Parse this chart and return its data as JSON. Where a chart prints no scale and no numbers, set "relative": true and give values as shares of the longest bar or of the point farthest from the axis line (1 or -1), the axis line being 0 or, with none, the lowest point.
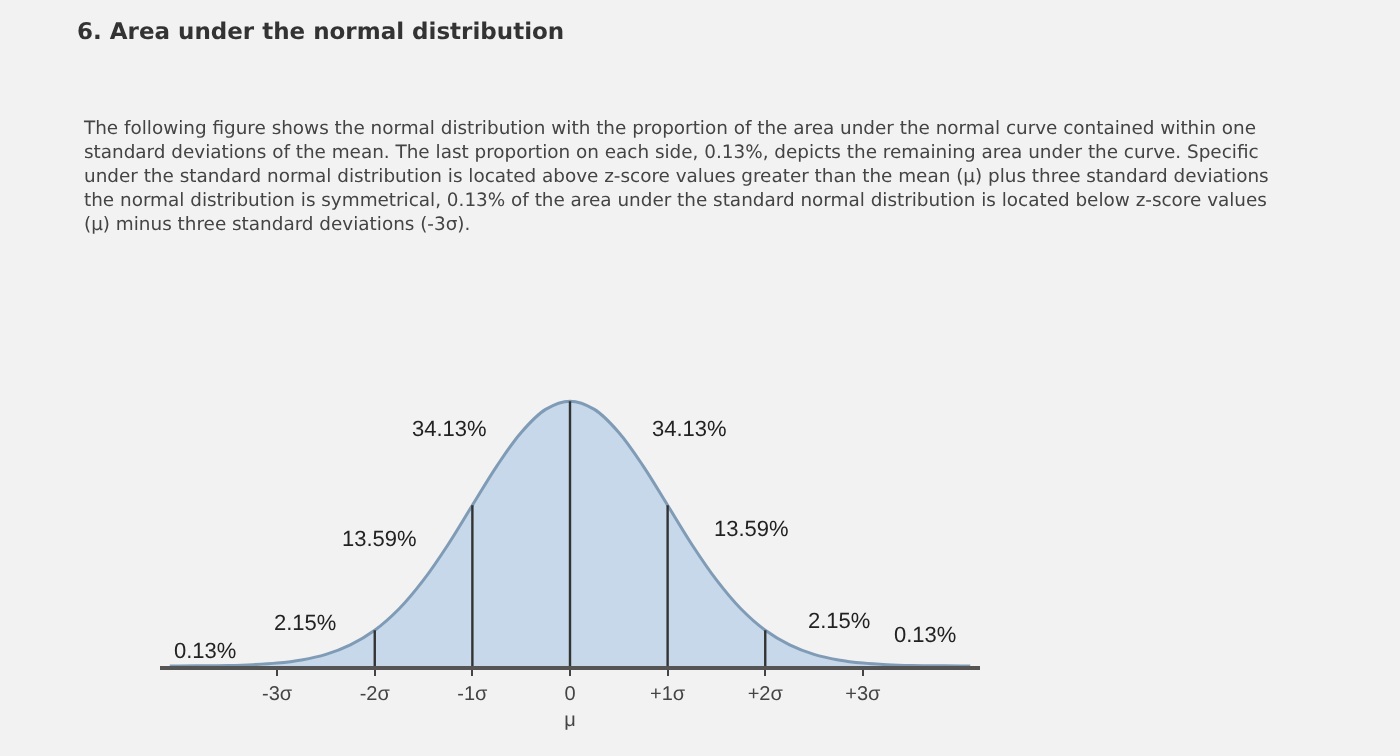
{
  "chart_data": {
    "type": "area",
    "relative": true,
    "title": "6. Area under the normal distribution",
    "subtitle": "The following figure shows the normal distribution with the proportion of the area under the normal curve contained within one\nstandard deviations of the mean. The last proportion on each side, 0.13%, depicts the remaining area under the curve. Specific\nunder the standard normal distribution is located above z-score values greater than the mean (μ) plus three standard deviations\nthe normal distribution is symmetrical, 0.13% of the area under the standard normal distribution is located below z-score values\n(μ) minus three standard deviations (-3σ).",
    "x": [
      -4.1,
      -4,
      -3.75,
      -3.5,
      -3.25,
      -3,
      -2.75,
      -2.5,
      -2.25,
      -2,
      -1.75,
      -1.5,
      -1.25,
      -1,
      -0.75,
      -0.5,
      -0.25,
      0,
      0.25,
      0.5,
      0.75,
      1,
      1.25,
      1.5,
      1.75,
      2,
      2.25,
      2.5,
      2.75,
      3,
      3.25,
      3.5,
      3.75,
      4,
      4.1
    ],
    "series": [
      {
        "color": "#7f9bb5",
        "values": [
          0,
          0,
          0.001,
          0.002,
          0.005,
          0.011,
          0.023,
          0.044,
          0.08,
          0.135,
          0.216,
          0.325,
          0.458,
          0.607,
          0.755,
          0.882,
          0.969,
          1,
          0.969,
          0.882,
          0.755,
          0.607,
          0.458,
          0.325,
          0.216,
          0.135,
          0.08,
          0.044,
          0.023,
          0.011,
          0.005,
          0.002,
          0.001,
          0,
          0
        ]
      }
    ],
    "xlim": [
      -4.2,
      4.2
    ],
    "xticks": [
      {
        "value": -3,
        "label": "-3σ"
      },
      {
        "value": -2,
        "label": "-2σ"
      },
      {
        "value": -1,
        "label": "-1σ"
      },
      {
        "value": 0,
        "label": "0\nμ"
      },
      {
        "value": 1,
        "label": "+1σ"
      },
      {
        "value": 2,
        "label": "+2σ"
      },
      {
        "value": 3,
        "label": "+3σ"
      }
    ],
    "ref_lines": [
      {
        "axis": "x",
        "value": -2,
        "color": "#333333"
      },
      {
        "axis": "x",
        "value": -1,
        "color": "#333333"
      },
      {
        "axis": "x",
        "value": 0,
        "color": "#333333"
      },
      {
        "axis": "x",
        "value": 1,
        "color": "#333333"
      },
      {
        "axis": "x",
        "value": 2,
        "color": "#333333"
      }
    ],
    "annotations": [
      "34.13%",
      "34.13%",
      "13.59%",
      "13.59%",
      "2.15%",
      "2.15%",
      "0.13%",
      "0.13%"
    ],
    "grid": false
  }
}
